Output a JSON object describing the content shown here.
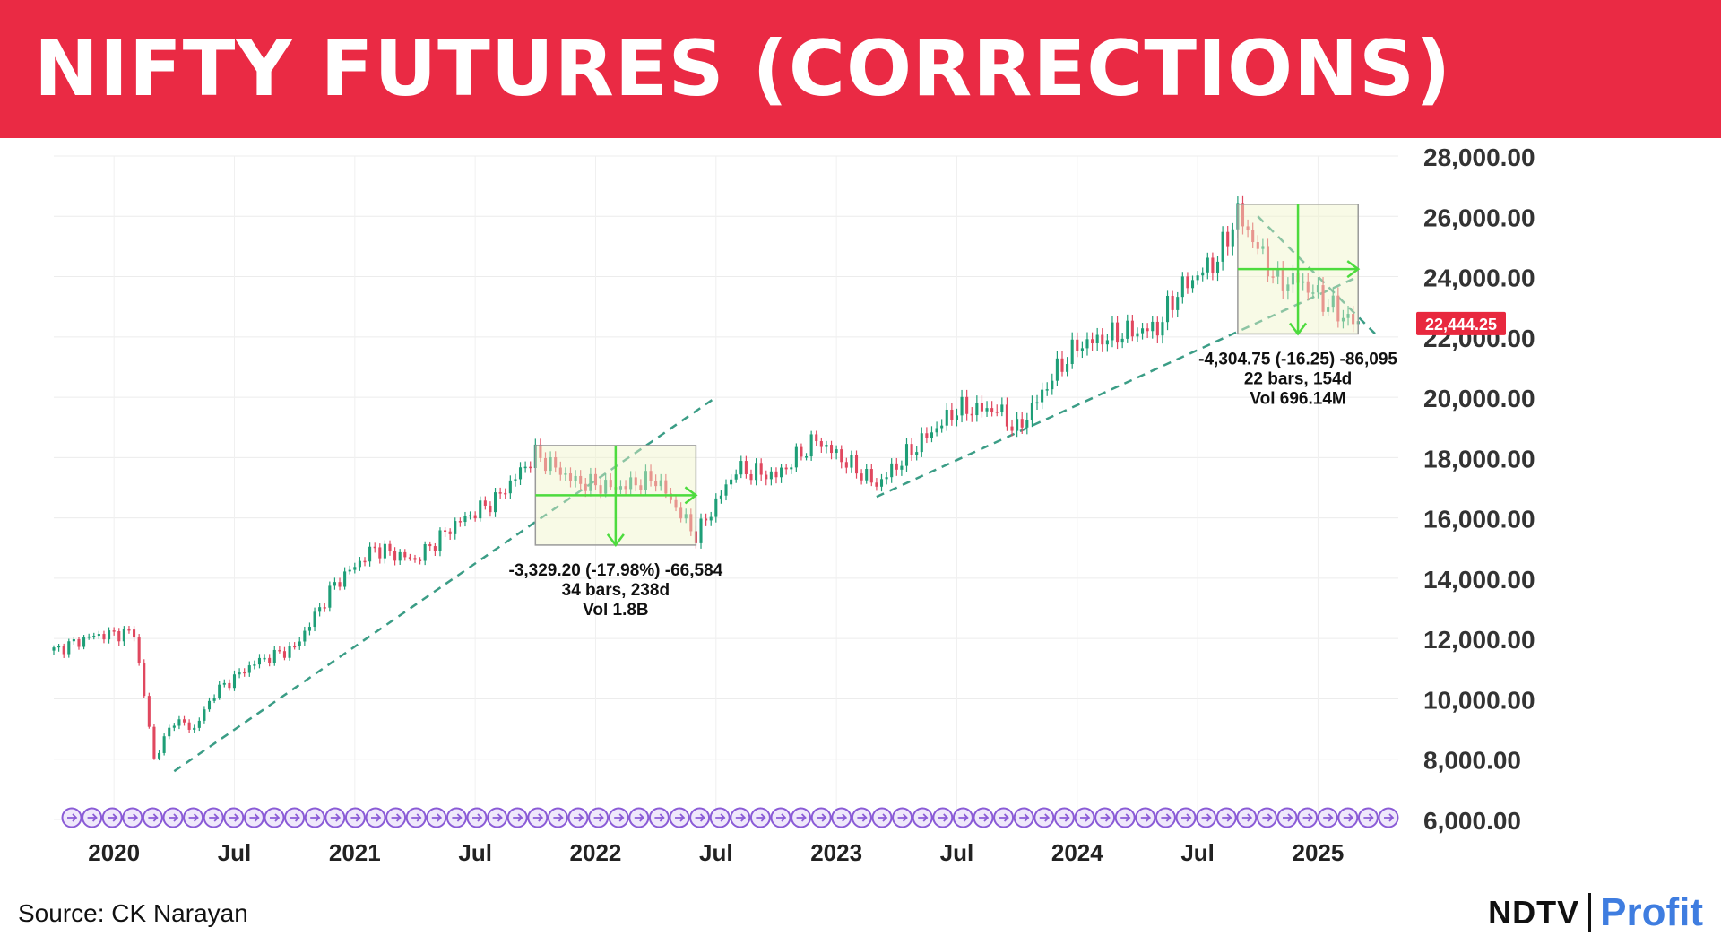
{
  "header": {
    "title": "NIFTY FUTURES (CORRECTIONS)"
  },
  "footer": {
    "source": "Source: CK Narayan"
  },
  "logo": {
    "ndtv": "NDTV",
    "profit": "Profit"
  },
  "colors": {
    "banner": "#ea2a44",
    "up_candle": "#1e9e77",
    "down_candle": "#e0485f",
    "trendline": "#3b9d86",
    "measure_arrow": "#4ddb3e",
    "price_tag": "#e8283e",
    "event_markers": "#8a5bd6"
  },
  "chart_data": {
    "type": "candlestick",
    "title": "NIFTY FUTURES (CORRECTIONS)",
    "ylim": [
      6000,
      28000
    ],
    "y_ticks": [
      "6,000.00",
      "8,000.00",
      "10,000.00",
      "12,000.00",
      "14,000.00",
      "16,000.00",
      "18,000.00",
      "20,000.00",
      "22,000.00",
      "24,000.00",
      "26,000.00",
      "28,000.00"
    ],
    "y_tick_values": [
      6000,
      8000,
      10000,
      12000,
      14000,
      16000,
      18000,
      20000,
      22000,
      24000,
      26000,
      28000
    ],
    "x_tick_labels": [
      "2020",
      "Jul",
      "2021",
      "Jul",
      "2022",
      "Jul",
      "2023",
      "Jul",
      "2024",
      "Jul",
      "2025"
    ],
    "x_tick_dates": [
      "2020-01",
      "2020-07",
      "2021-01",
      "2021-07",
      "2022-01",
      "2022-07",
      "2023-01",
      "2023-07",
      "2024-01",
      "2024-07",
      "2025-01"
    ],
    "x_range": [
      "2019-10",
      "2025-05"
    ],
    "grid": true,
    "last_price": "22,444.25",
    "last_price_value": 22444.25,
    "price_path": {
      "dates": [
        "2019-10",
        "2019-12",
        "2020-02",
        "2020-03",
        "2020-04",
        "2020-05",
        "2020-06",
        "2020-08",
        "2020-10",
        "2020-12",
        "2021-02",
        "2021-04",
        "2021-06",
        "2021-08",
        "2021-10",
        "2021-12",
        "2022-02",
        "2022-04",
        "2022-06",
        "2022-08",
        "2022-10",
        "2022-12",
        "2023-02",
        "2023-03",
        "2023-05",
        "2023-07",
        "2023-09",
        "2023-10",
        "2023-12",
        "2024-01",
        "2024-03",
        "2024-05",
        "2024-06",
        "2024-08",
        "2024-09",
        "2024-11",
        "2024-12",
        "2025-02",
        "2025-03"
      ],
      "values": [
        11600,
        12100,
        12200,
        8000,
        9300,
        9000,
        10200,
        11200,
        11700,
        13800,
        15000,
        14600,
        15800,
        16600,
        18100,
        17200,
        17000,
        17300,
        15400,
        17600,
        17400,
        18600,
        17600,
        17100,
        18400,
        19600,
        19600,
        18900,
        20900,
        21700,
        22100,
        22300,
        23500,
        24600,
        26100,
        23800,
        23900,
        22800,
        22400
      ]
    },
    "trendlines": [
      {
        "from": {
          "date": "2020-04",
          "value": 7600
        },
        "to": {
          "date": "2022-07",
          "value": 20000
        }
      },
      {
        "from": {
          "date": "2023-03",
          "value": 16700
        },
        "to": {
          "date": "2025-03",
          "value": 24000
        }
      },
      {
        "from": {
          "date": "2024-10",
          "value": 26000
        },
        "to": {
          "date": "2025-04",
          "value": 22000
        }
      }
    ],
    "measurements": [
      {
        "from_date": "2021-10",
        "to_date": "2022-06",
        "high": 18400,
        "low": 15100,
        "lines": [
          "-3,329.20 (-17.98%) -66,584",
          "34 bars, 238d",
          "Vol 1.8B"
        ]
      },
      {
        "from_date": "2024-09",
        "to_date": "2025-03",
        "high": 26400,
        "low": 22100,
        "lines": [
          "-4,304.75 (-16.25) -86,095",
          "22 bars, 154d",
          "Vol 696.14M"
        ]
      }
    ]
  }
}
